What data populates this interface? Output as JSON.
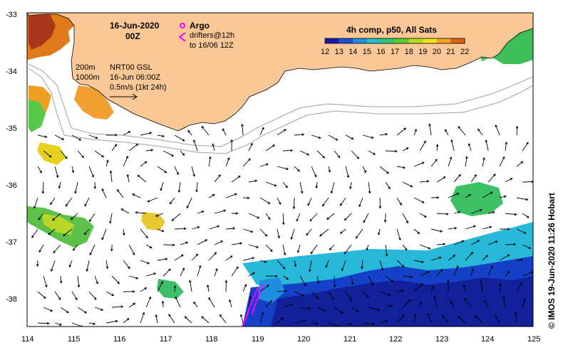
{
  "title": {
    "date": "16-Jun-2020",
    "time": "00Z"
  },
  "legend_argo": {
    "label": "Argo",
    "drifters_line1": "drifters@12h",
    "drifters_line2": "to 16/06 12Z"
  },
  "bathymetry": {
    "contour1": "200m",
    "contour2": "1000m"
  },
  "current_info": {
    "line1": "NRT00 GSL",
    "line2": "16-Jun 06:00Z",
    "line3": "0.5m/s (1kt 24h)"
  },
  "colorbar": {
    "title": "4h comp, p50, All Sats",
    "ticks": [
      "12",
      "13",
      "14",
      "15",
      "16",
      "17",
      "18",
      "19",
      "20",
      "21",
      "22"
    ],
    "colors": [
      "#1a1aa8",
      "#1f4fd6",
      "#1b8fe0",
      "#20c3c8",
      "#2ec77a",
      "#5fcf2e",
      "#b7dc1f",
      "#f2e21c",
      "#f5a623",
      "#e0621a",
      "#b8281a"
    ]
  },
  "axes": {
    "lon_ticks": [
      "114",
      "115",
      "116",
      "117",
      "118",
      "119",
      "120",
      "121",
      "122",
      "123",
      "124",
      "125"
    ],
    "lat_ticks": [
      "-33",
      "-34",
      "-35",
      "-36",
      "-37",
      "-38"
    ]
  },
  "credit": "© IMOS 19-Jun-2020 11:26 Hobart",
  "colors": {
    "land": "#fac896",
    "ocean": "#ffffff",
    "drifter": "#ff00ff"
  }
}
